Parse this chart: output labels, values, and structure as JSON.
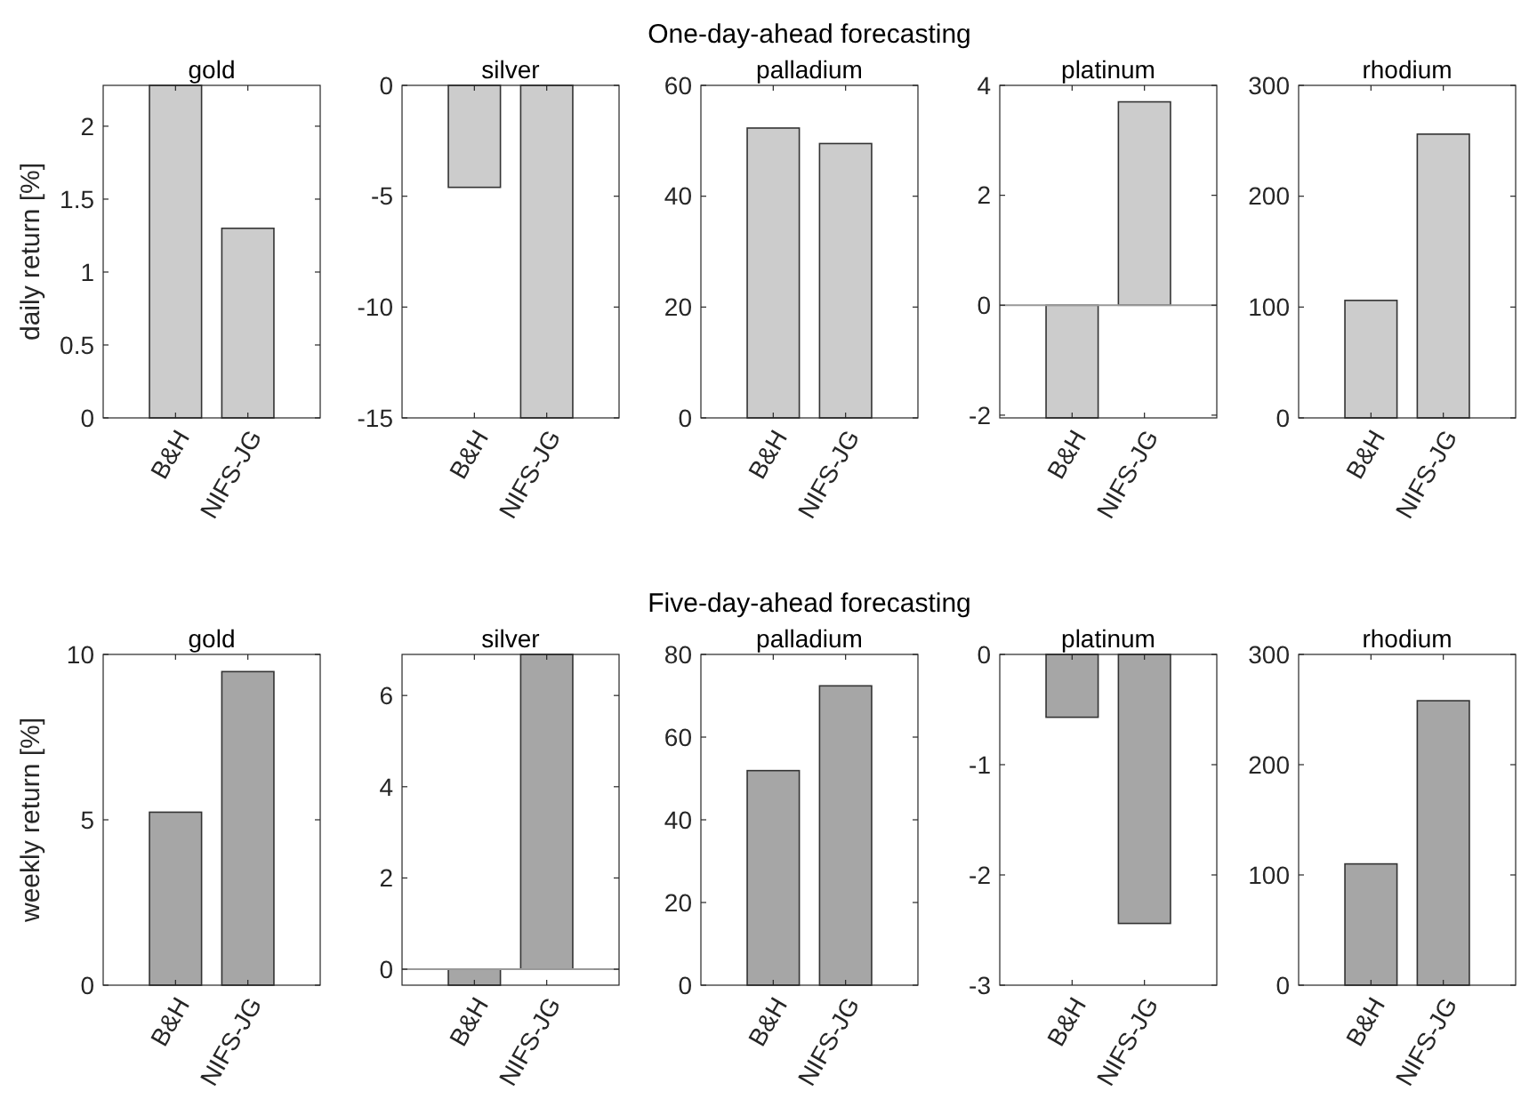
{
  "chart_data": [
    {
      "type": "bar",
      "title": "gold",
      "annotations": [
        "One-day-ahead forecasting"
      ],
      "ylabel": "daily return [%]",
      "categories": [
        "B&H",
        "NIFS-JG"
      ],
      "values": [
        2.28,
        1.3
      ],
      "color": "#cccccc",
      "ylim": [
        0,
        2.28
      ],
      "yticks": [
        0,
        0.5,
        1,
        1.5,
        2
      ]
    },
    {
      "type": "bar",
      "title": "silver",
      "categories": [
        "B&H",
        "NIFS-JG"
      ],
      "values": [
        -4.6,
        -15
      ],
      "color": "#cccccc",
      "ylim": [
        -15,
        0
      ],
      "yticks": [
        -15,
        -10,
        -5,
        0
      ]
    },
    {
      "type": "bar",
      "title": "palladium",
      "categories": [
        "B&H",
        "NIFS-JG"
      ],
      "values": [
        52.3,
        49.5
      ],
      "color": "#cccccc",
      "ylim": [
        0,
        60
      ],
      "yticks": [
        0,
        20,
        40,
        60
      ]
    },
    {
      "type": "bar",
      "title": "platinum",
      "categories": [
        "B&H",
        "NIFS-JG"
      ],
      "values": [
        -2.05,
        3.7
      ],
      "color": "#cccccc",
      "ylim": [
        -2.05,
        4
      ],
      "yticks": [
        -2,
        0,
        2,
        4
      ]
    },
    {
      "type": "bar",
      "title": "rhodium",
      "categories": [
        "B&H",
        "NIFS-JG"
      ],
      "values": [
        106,
        256
      ],
      "color": "#cccccc",
      "ylim": [
        0,
        300
      ],
      "yticks": [
        0,
        100,
        200,
        300
      ]
    },
    {
      "type": "bar",
      "title": "gold",
      "annotations": [
        "Five-day-ahead forecasting"
      ],
      "ylabel": "weekly return [%]",
      "categories": [
        "B&H",
        "NIFS-JG"
      ],
      "values": [
        5.23,
        9.48
      ],
      "color": "#a6a6a6",
      "ylim": [
        0,
        10
      ],
      "yticks": [
        0,
        5,
        10
      ]
    },
    {
      "type": "bar",
      "title": "silver",
      "categories": [
        "B&H",
        "NIFS-JG"
      ],
      "values": [
        -0.35,
        6.9
      ],
      "color": "#a6a6a6",
      "ylim": [
        -0.35,
        6.9
      ],
      "yticks": [
        0,
        2,
        4,
        6
      ]
    },
    {
      "type": "bar",
      "title": "palladium",
      "categories": [
        "B&H",
        "NIFS-JG"
      ],
      "values": [
        51.9,
        72.4
      ],
      "color": "#a6a6a6",
      "ylim": [
        0,
        80
      ],
      "yticks": [
        0,
        20,
        40,
        60,
        80
      ]
    },
    {
      "type": "bar",
      "title": "platinum",
      "categories": [
        "B&H",
        "NIFS-JG"
      ],
      "values": [
        -0.57,
        -2.44
      ],
      "color": "#a6a6a6",
      "ylim": [
        -3,
        0
      ],
      "yticks": [
        -3,
        -2,
        -1,
        0
      ]
    },
    {
      "type": "bar",
      "title": "rhodium",
      "categories": [
        "B&H",
        "NIFS-JG"
      ],
      "values": [
        110,
        258
      ],
      "color": "#a6a6a6",
      "ylim": [
        0,
        300
      ],
      "yticks": [
        0,
        100,
        200,
        300
      ]
    }
  ]
}
